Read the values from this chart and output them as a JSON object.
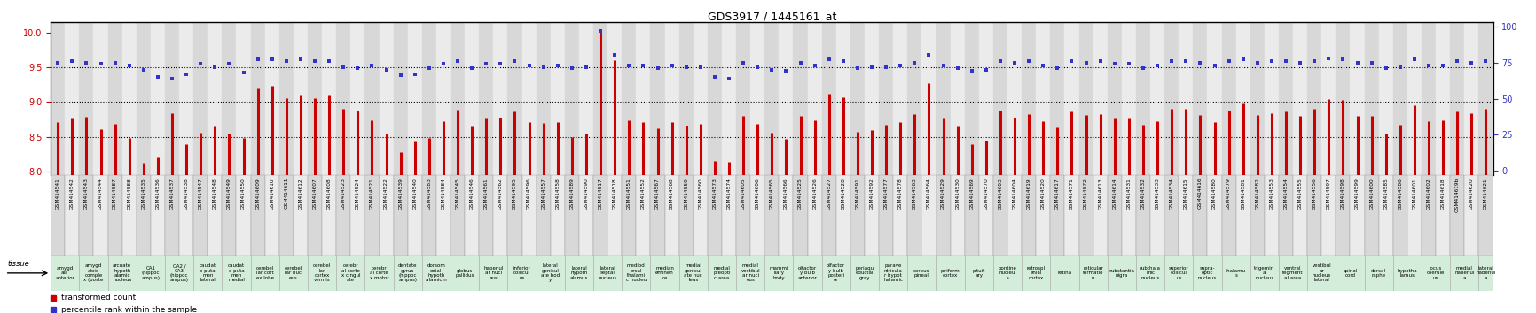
{
  "title": "GDS3917 / 1445161_at",
  "gsm_ids": [
    "GSM414541",
    "GSM414542",
    "GSM414543",
    "GSM414544",
    "GSM414587",
    "GSM414588",
    "GSM414535",
    "GSM414536",
    "GSM414537",
    "GSM414538",
    "GSM414547",
    "GSM414548",
    "GSM414549",
    "GSM414550",
    "GSM414609",
    "GSM414610",
    "GSM414611",
    "GSM414612",
    "GSM414607",
    "GSM414608",
    "GSM414523",
    "GSM414524",
    "GSM414521",
    "GSM414522",
    "GSM414539",
    "GSM414540",
    "GSM414583",
    "GSM414584",
    "GSM414545",
    "GSM414546",
    "GSM414561",
    "GSM414562",
    "GSM414595",
    "GSM414596",
    "GSM414557",
    "GSM414558",
    "GSM414589",
    "GSM414590",
    "GSM414517",
    "GSM414518",
    "GSM414551",
    "GSM414552",
    "GSM414567",
    "GSM414568",
    "GSM414559",
    "GSM414560",
    "GSM414573",
    "GSM414574",
    "GSM414605",
    "GSM414606",
    "GSM414565",
    "GSM414566",
    "GSM414525",
    "GSM414526",
    "GSM414527",
    "GSM414528",
    "GSM414591",
    "GSM414592",
    "GSM414577",
    "GSM414578",
    "GSM414563",
    "GSM414564",
    "GSM414529",
    "GSM414530",
    "GSM414569",
    "GSM414570",
    "GSM414603",
    "GSM414604",
    "GSM414619",
    "GSM414520",
    "GSM414617",
    "GSM414571",
    "GSM414572",
    "GSM414613",
    "GSM414614",
    "GSM414531",
    "GSM414532",
    "GSM414533",
    "GSM414534",
    "GSM414615",
    "GSM414616",
    "GSM414580",
    "GSM414579",
    "GSM414581",
    "GSM414582",
    "GSM414553",
    "GSM414554",
    "GSM414555",
    "GSM414556",
    "GSM414597",
    "GSM414598",
    "GSM414599",
    "GSM414600",
    "GSM414585",
    "GSM414586",
    "GSM414601",
    "GSM414602",
    "GSM414618",
    "GSM414619b",
    "GSM414620",
    "GSM414621"
  ],
  "tissue_groups": [
    {
      "label": "amygd\nala\nanterior",
      "count": 2
    },
    {
      "label": "amygd\naloid\ncomple\nx (poste",
      "count": 2
    },
    {
      "label": "arcuate\nhypoth\nalamic\nnucleus",
      "count": 2
    },
    {
      "label": "CA1\n(hippoc\nampus)",
      "count": 2
    },
    {
      "label": "CA2 /\nCA3\n(hippoc\nampus)",
      "count": 2
    },
    {
      "label": "caudat\ne puta\nmen\nlateral",
      "count": 2
    },
    {
      "label": "caudat\ne puta\nmen\nmedial",
      "count": 2
    },
    {
      "label": "cerebel\nlar cort\nex lobe",
      "count": 2
    },
    {
      "label": "cerebel\nlar nuci\neus",
      "count": 2
    },
    {
      "label": "cerebel\nlar\ncortex\nvermis",
      "count": 2
    },
    {
      "label": "cerebr\nal corte\nx cingul\nate",
      "count": 2
    },
    {
      "label": "cerebr\nal corte\nx motor",
      "count": 2
    },
    {
      "label": "dentate\ngyrus\n(hippoc\nampus)",
      "count": 2
    },
    {
      "label": "dorsom\nedial\nhypoth\nalamic n",
      "count": 2
    },
    {
      "label": "globus\npallidus",
      "count": 2
    },
    {
      "label": "habenul\nar nuci\neus",
      "count": 2
    },
    {
      "label": "inferior\ncollicul\nus",
      "count": 2
    },
    {
      "label": "lateral\ngenicul\nate bod\ny",
      "count": 2
    },
    {
      "label": "lateral\nhypoth\nalamus",
      "count": 2
    },
    {
      "label": "lateral\nseptal\nnucleus",
      "count": 2
    },
    {
      "label": "mediod\norsal\nthalami\nc nucleu",
      "count": 2
    },
    {
      "label": "median\neminen\nce",
      "count": 2
    },
    {
      "label": "medial\ngenicul\nate nuc\nleus",
      "count": 2
    },
    {
      "label": "medial\npreopti\nc area",
      "count": 2
    },
    {
      "label": "medial\nvestibul\nar nuci\neus",
      "count": 2
    },
    {
      "label": "mammi\nliary\nbody",
      "count": 2
    },
    {
      "label": "olfactor\ny bulb\nanterior",
      "count": 2
    },
    {
      "label": "olfactor\ny bulb\nposteri\nor",
      "count": 2
    },
    {
      "label": "periaqu\neductal\ngray",
      "count": 2
    },
    {
      "label": "parave\nntricula\nr hypot\nhalamic",
      "count": 2
    },
    {
      "label": "corpus\npineal",
      "count": 2
    },
    {
      "label": "piriform\ncortex",
      "count": 2
    },
    {
      "label": "pituit\nary",
      "count": 2
    },
    {
      "label": "pontine\nnucleu\ns",
      "count": 2
    },
    {
      "label": "retrospl\nenial\ncortex",
      "count": 2
    },
    {
      "label": "retina",
      "count": 2
    },
    {
      "label": "reticular\nformatio\nn",
      "count": 2
    },
    {
      "label": "substantia\nnigra",
      "count": 2
    },
    {
      "label": "subthala\nmic\nnucleus",
      "count": 2
    },
    {
      "label": "superior\ncollicul\nus",
      "count": 2
    },
    {
      "label": "supra-\noptic\nnucleus",
      "count": 2
    },
    {
      "label": "thalamu\ns",
      "count": 2
    },
    {
      "label": "trigemin\nal\nnucleus",
      "count": 2
    },
    {
      "label": "ventral\ntegment\nal area",
      "count": 2
    },
    {
      "label": "vestibul\nar\nnucleus\nlateral",
      "count": 2
    },
    {
      "label": "spinal\ncord",
      "count": 2
    },
    {
      "label": "dorsal\nraphe",
      "count": 2
    },
    {
      "label": "hypotha\nlamus",
      "count": 2
    },
    {
      "label": "locus\ncoerule\nus",
      "count": 2
    },
    {
      "label": "medial\nhabenul\na",
      "count": 2
    },
    {
      "label": "lateral\nhabenul\na",
      "count": 1
    }
  ],
  "bar_values": [
    8.71,
    8.77,
    8.79,
    8.61,
    8.69,
    8.48,
    8.13,
    8.21,
    8.84,
    8.4,
    8.56,
    8.65,
    8.55,
    8.49,
    9.2,
    9.23,
    9.06,
    9.1,
    9.06,
    9.1,
    8.9,
    8.88,
    8.74,
    8.55,
    8.28,
    8.44,
    8.49,
    8.73,
    8.89,
    8.65,
    8.77,
    8.78,
    8.87,
    8.72,
    8.7,
    8.72,
    8.5,
    8.55,
    10.05,
    9.6,
    8.74,
    8.72,
    8.63,
    8.71,
    8.66,
    8.69,
    8.15,
    8.14,
    8.8,
    8.69,
    8.56,
    8.47,
    8.8,
    8.74,
    9.12,
    9.07,
    8.57,
    8.6,
    8.67,
    8.72,
    8.83,
    9.27,
    8.77,
    8.65,
    8.4,
    8.45,
    8.88,
    8.78,
    8.83,
    8.73,
    8.64,
    8.87,
    8.82,
    8.83,
    8.77,
    8.77,
    8.67,
    8.73,
    8.9,
    8.91,
    8.81,
    8.71,
    8.88,
    8.98,
    8.82,
    8.84,
    8.87,
    8.8,
    8.9,
    9.05,
    9.03,
    8.8,
    8.8,
    8.55,
    8.68,
    8.95,
    8.73,
    8.74,
    8.86,
    8.84,
    8.9
  ],
  "dot_values_pct": [
    75,
    76,
    75,
    74,
    75,
    73,
    70,
    65,
    64,
    67,
    74,
    72,
    74,
    68,
    77,
    77,
    76,
    77,
    76,
    76,
    72,
    71,
    73,
    70,
    66,
    67,
    71,
    74,
    76,
    71,
    74,
    74,
    76,
    73,
    72,
    73,
    71,
    72,
    97,
    80,
    73,
    73,
    71,
    73,
    72,
    72,
    65,
    64,
    75,
    72,
    70,
    69,
    75,
    73,
    77,
    76,
    71,
    72,
    72,
    73,
    75,
    80,
    73,
    71,
    69,
    70,
    76,
    75,
    76,
    73,
    71,
    76,
    75,
    76,
    74,
    74,
    71,
    73,
    76,
    76,
    75,
    73,
    76,
    77,
    75,
    76,
    76,
    75,
    76,
    78,
    77,
    75,
    75,
    71,
    72,
    77,
    73,
    73,
    76,
    75,
    76
  ],
  "bar_color": "#cc0000",
  "dot_color": "#3333cc",
  "ylim_left": [
    7.95,
    10.15
  ],
  "ylim_right": [
    -3,
    103
  ],
  "yticks_left": [
    8.0,
    8.5,
    9.0,
    9.5,
    10.0
  ],
  "yticks_right": [
    0,
    25,
    50,
    75,
    100
  ],
  "hlines": [
    8.5,
    9.0,
    9.5
  ],
  "gsm_bg_odd": "#d8d8d8",
  "gsm_bg_even": "#ebebeb",
  "tissue_bg": "#d4edda",
  "tissue_border": "#aaaaaa",
  "fig_width": 17.32,
  "fig_height": 3.54
}
